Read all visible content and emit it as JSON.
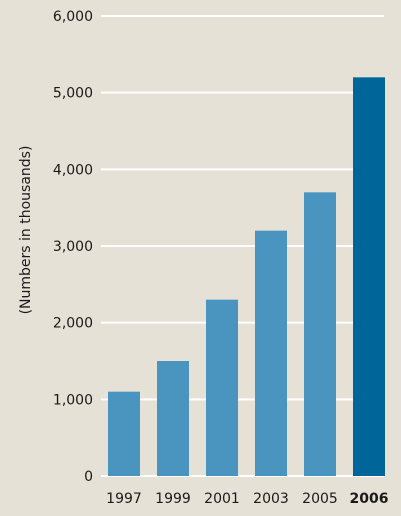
{
  "chart_data": {
    "type": "bar",
    "title": "",
    "xlabel": "",
    "ylabel": "(Numbers in thousands)",
    "categories": [
      "1997",
      "1999",
      "2001",
      "2003",
      "2005",
      "2006"
    ],
    "values": [
      1100,
      1500,
      2300,
      3200,
      3700,
      5200
    ],
    "ylim": [
      0,
      6000
    ],
    "yticks": [
      0,
      1000,
      2000,
      3000,
      4000,
      5000,
      6000
    ],
    "ytick_labels": [
      "0",
      "1,000",
      "2,000",
      "3,000",
      "4,000",
      "5,000",
      "6,000"
    ],
    "grid": true,
    "highlight_index": 5,
    "colors": {
      "bar": "#4a94c0",
      "highlight_bar": "#006699",
      "background": "#e6e1d6",
      "grid": "#ffffff"
    }
  }
}
